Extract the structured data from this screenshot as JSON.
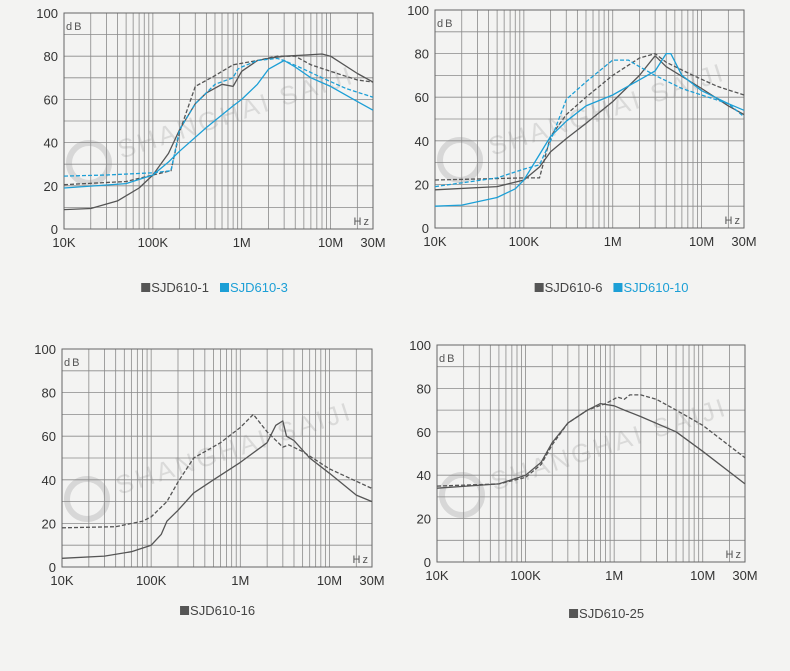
{
  "watermark": "SHANGHAI SAIJI",
  "colors": {
    "gray": "#555555",
    "blue": "#1c9fd6",
    "grid": "#8a8a8a"
  },
  "chart_data": [
    {
      "type": "line",
      "xscale": "log",
      "xlim": [
        10000,
        30000000
      ],
      "ylim": [
        0,
        100
      ],
      "ylabel": "dB",
      "xlabel": "Hz",
      "yticks": [
        0,
        20,
        40,
        60,
        80,
        100
      ],
      "xticks": [
        {
          "v": 10000,
          "label": "10K"
        },
        {
          "v": 100000,
          "label": "100K"
        },
        {
          "v": 1000000,
          "label": "1M"
        },
        {
          "v": 10000000,
          "label": "10M"
        },
        {
          "v": 30000000,
          "label": "30M"
        }
      ],
      "grid": true,
      "legend": [
        {
          "label": "SJD610-1",
          "color": "gray"
        },
        {
          "label": "SJD610-3",
          "color": "blue"
        }
      ],
      "series": [
        {
          "legend": "SJD610-1",
          "color": "gray",
          "dashed": false,
          "points": [
            [
              10000,
              9
            ],
            [
              20000,
              9.5
            ],
            [
              40000,
              13
            ],
            [
              70000,
              19
            ],
            [
              100000,
              25
            ],
            [
              150000,
              35
            ],
            [
              200000,
              46
            ],
            [
              300000,
              58
            ],
            [
              400000,
              63
            ],
            [
              600000,
              67
            ],
            [
              800000,
              66
            ],
            [
              1000000,
              73
            ],
            [
              1500000,
              78
            ],
            [
              2000000,
              79
            ],
            [
              3000000,
              80
            ],
            [
              5000000,
              80.5
            ],
            [
              8000000,
              81
            ],
            [
              10000000,
              80
            ],
            [
              20000000,
              72
            ],
            [
              30000000,
              68
            ]
          ]
        },
        {
          "legend": "SJD610-1",
          "color": "gray",
          "dashed": true,
          "points": [
            [
              10000,
              20.5
            ],
            [
              50000,
              22
            ],
            [
              100000,
              25
            ],
            [
              160000,
              27
            ],
            [
              200000,
              45
            ],
            [
              300000,
              66
            ],
            [
              500000,
              71
            ],
            [
              800000,
              76
            ],
            [
              1500000,
              78
            ],
            [
              2500000,
              80
            ],
            [
              4000000,
              80
            ],
            [
              6000000,
              76
            ],
            [
              10000000,
              73
            ],
            [
              20000000,
              69
            ],
            [
              30000000,
              68
            ]
          ]
        },
        {
          "legend": "SJD610-3",
          "color": "blue",
          "dashed": false,
          "points": [
            [
              10000,
              19
            ],
            [
              50000,
              21
            ],
            [
              100000,
              25
            ],
            [
              150000,
              31
            ],
            [
              200000,
              36
            ],
            [
              400000,
              47
            ],
            [
              800000,
              57
            ],
            [
              1000000,
              60
            ],
            [
              1500000,
              67
            ],
            [
              2000000,
              74
            ],
            [
              3000000,
              78
            ],
            [
              4000000,
              75
            ],
            [
              6000000,
              70
            ],
            [
              10000000,
              66
            ],
            [
              20000000,
              59
            ],
            [
              30000000,
              55
            ]
          ]
        },
        {
          "legend": "SJD610-3",
          "color": "blue",
          "dashed": true,
          "points": [
            [
              10000,
              24.5
            ],
            [
              30000,
              25
            ],
            [
              100000,
              26
            ],
            [
              160000,
              27
            ],
            [
              200000,
              46
            ],
            [
              300000,
              58
            ],
            [
              500000,
              67
            ],
            [
              800000,
              70
            ],
            [
              900000,
              74
            ],
            [
              1000000,
              75
            ],
            [
              1500000,
              78
            ],
            [
              2500000,
              79
            ],
            [
              3000000,
              78
            ],
            [
              5000000,
              74
            ],
            [
              8000000,
              70
            ],
            [
              15000000,
              65
            ],
            [
              30000000,
              61
            ]
          ]
        }
      ]
    },
    {
      "type": "line",
      "xscale": "log",
      "xlim": [
        10000,
        30000000
      ],
      "ylim": [
        0,
        100
      ],
      "ylabel": "dB",
      "xlabel": "Hz",
      "yticks": [
        0,
        20,
        40,
        60,
        80,
        100
      ],
      "xticks": [
        {
          "v": 10000,
          "label": "10K"
        },
        {
          "v": 100000,
          "label": "100K"
        },
        {
          "v": 1000000,
          "label": "1M"
        },
        {
          "v": 10000000,
          "label": "10M"
        },
        {
          "v": 30000000,
          "label": "30M"
        }
      ],
      "grid": true,
      "legend": [
        {
          "label": "SJD610-6",
          "color": "gray"
        },
        {
          "label": "SJD610-10",
          "color": "blue"
        }
      ],
      "series": [
        {
          "legend": "SJD610-6",
          "color": "gray",
          "dashed": false,
          "points": [
            [
              10000,
              17.5
            ],
            [
              50000,
              19
            ],
            [
              100000,
              22
            ],
            [
              150000,
              28
            ],
            [
              200000,
              35
            ],
            [
              300000,
              41
            ],
            [
              500000,
              48
            ],
            [
              1000000,
              58
            ],
            [
              2000000,
              70
            ],
            [
              3000000,
              79
            ],
            [
              4000000,
              74
            ],
            [
              10000000,
              64
            ],
            [
              20000000,
              56
            ],
            [
              30000000,
              52
            ]
          ]
        },
        {
          "legend": "SJD610-6",
          "color": "gray",
          "dashed": true,
          "points": [
            [
              10000,
              22
            ],
            [
              100000,
              23
            ],
            [
              150000,
              23
            ],
            [
              200000,
              42
            ],
            [
              300000,
              52
            ],
            [
              500000,
              60
            ],
            [
              1000000,
              70
            ],
            [
              2000000,
              78
            ],
            [
              3000000,
              80
            ],
            [
              4000000,
              76
            ],
            [
              8000000,
              70
            ],
            [
              15000000,
              65
            ],
            [
              30000000,
              61
            ]
          ]
        },
        {
          "legend": "SJD610-10",
          "color": "blue",
          "dashed": false,
          "points": [
            [
              10000,
              10
            ],
            [
              20000,
              10.5
            ],
            [
              50000,
              14
            ],
            [
              80000,
              18
            ],
            [
              100000,
              22
            ],
            [
              200000,
              42
            ],
            [
              300000,
              49
            ],
            [
              500000,
              56
            ],
            [
              1000000,
              61
            ],
            [
              2000000,
              68
            ],
            [
              3000000,
              72
            ],
            [
              4000000,
              80
            ],
            [
              4500000,
              80
            ],
            [
              6000000,
              70
            ],
            [
              10000000,
              63
            ],
            [
              20000000,
              57
            ],
            [
              30000000,
              54
            ]
          ]
        },
        {
          "legend": "SJD610-10",
          "color": "blue",
          "dashed": true,
          "points": [
            [
              10000,
              19
            ],
            [
              50000,
              23
            ],
            [
              100000,
              27
            ],
            [
              150000,
              29
            ],
            [
              200000,
              40
            ],
            [
              300000,
              59
            ],
            [
              500000,
              67
            ],
            [
              1000000,
              77
            ],
            [
              1500000,
              77
            ],
            [
              2000000,
              74
            ],
            [
              3000000,
              70
            ],
            [
              6000000,
              64
            ],
            [
              10000000,
              61
            ],
            [
              20000000,
              57
            ],
            [
              30000000,
              51
            ]
          ]
        }
      ]
    },
    {
      "type": "line",
      "xscale": "log",
      "xlim": [
        10000,
        30000000
      ],
      "ylim": [
        0,
        100
      ],
      "ylabel": "dB",
      "xlabel": "Hz",
      "yticks": [
        0,
        20,
        40,
        60,
        80,
        100
      ],
      "xticks": [
        {
          "v": 10000,
          "label": "10K"
        },
        {
          "v": 100000,
          "label": "100K"
        },
        {
          "v": 1000000,
          "label": "1M"
        },
        {
          "v": 10000000,
          "label": "10M"
        },
        {
          "v": 30000000,
          "label": "30M"
        }
      ],
      "grid": true,
      "legend": [
        {
          "label": "SJD610-16",
          "color": "gray"
        }
      ],
      "series": [
        {
          "legend": "SJD610-16",
          "color": "gray",
          "dashed": false,
          "points": [
            [
              10000,
              4
            ],
            [
              30000,
              5
            ],
            [
              60000,
              7
            ],
            [
              100000,
              10
            ],
            [
              130000,
              15
            ],
            [
              150000,
              21
            ],
            [
              200000,
              26
            ],
            [
              300000,
              34
            ],
            [
              500000,
              40
            ],
            [
              1000000,
              48
            ],
            [
              2000000,
              57
            ],
            [
              2500000,
              65
            ],
            [
              3000000,
              67
            ],
            [
              3300000,
              60
            ],
            [
              4000000,
              58
            ],
            [
              6000000,
              50
            ],
            [
              10000000,
              43
            ],
            [
              20000000,
              33
            ],
            [
              30000000,
              30
            ]
          ]
        },
        {
          "legend": "SJD610-16",
          "color": "gray",
          "dashed": true,
          "points": [
            [
              10000,
              18
            ],
            [
              40000,
              18.5
            ],
            [
              80000,
              21
            ],
            [
              100000,
              23
            ],
            [
              150000,
              30
            ],
            [
              200000,
              39
            ],
            [
              300000,
              50
            ],
            [
              600000,
              57
            ],
            [
              1000000,
              64
            ],
            [
              1400000,
              70
            ],
            [
              2000000,
              62
            ],
            [
              3000000,
              55
            ],
            [
              3500000,
              56
            ],
            [
              5000000,
              53
            ],
            [
              10000000,
              45
            ],
            [
              30000000,
              36
            ]
          ]
        }
      ]
    },
    {
      "type": "line",
      "xscale": "log",
      "xlim": [
        10000,
        30000000
      ],
      "ylim": [
        0,
        100
      ],
      "ylabel": "dB",
      "xlabel": "Hz",
      "yticks": [
        0,
        20,
        40,
        60,
        80,
        100
      ],
      "xticks": [
        {
          "v": 10000,
          "label": "10K"
        },
        {
          "v": 100000,
          "label": "100K"
        },
        {
          "v": 1000000,
          "label": "1M"
        },
        {
          "v": 10000000,
          "label": "10M"
        },
        {
          "v": 30000000,
          "label": "30M"
        }
      ],
      "grid": true,
      "legend": [
        {
          "label": "SJD610-25",
          "color": "gray"
        }
      ],
      "series": [
        {
          "legend": "SJD610-25",
          "color": "gray",
          "dashed": false,
          "points": [
            [
              10000,
              34
            ],
            [
              50000,
              36
            ],
            [
              100000,
              40
            ],
            [
              150000,
              46
            ],
            [
              200000,
              55
            ],
            [
              300000,
              64
            ],
            [
              500000,
              70
            ],
            [
              700000,
              73
            ],
            [
              1000000,
              72
            ],
            [
              1300000,
              70
            ],
            [
              2000000,
              67
            ],
            [
              5000000,
              60
            ],
            [
              10000000,
              51
            ],
            [
              30000000,
              36
            ]
          ]
        },
        {
          "legend": "SJD610-25",
          "color": "gray",
          "dashed": true,
          "points": [
            [
              10000,
              35
            ],
            [
              50000,
              36
            ],
            [
              100000,
              39
            ],
            [
              150000,
              45
            ],
            [
              200000,
              54
            ],
            [
              300000,
              64
            ],
            [
              500000,
              70
            ],
            [
              800000,
              73
            ],
            [
              1100000,
              76
            ],
            [
              1300000,
              75
            ],
            [
              1500000,
              77
            ],
            [
              2000000,
              77
            ],
            [
              3000000,
              75
            ],
            [
              5000000,
              70
            ],
            [
              10000000,
              63
            ],
            [
              30000000,
              48
            ]
          ]
        }
      ]
    }
  ]
}
